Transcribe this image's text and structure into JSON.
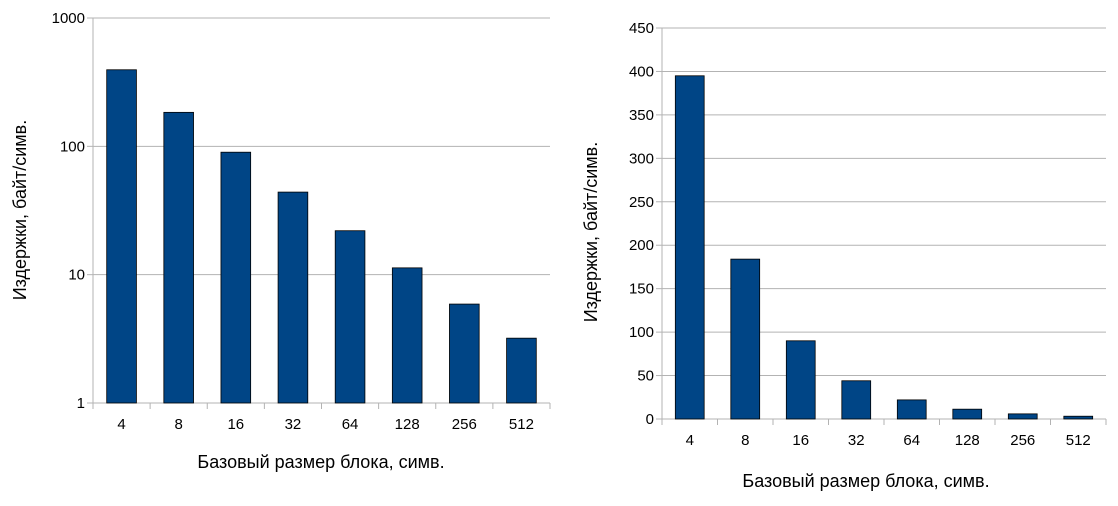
{
  "charts": {
    "left": {
      "xlabel": "Базовый размер блока, симв.",
      "ylabel": "Издержки, байт/симв.",
      "yticks": [
        "1",
        "10",
        "100",
        "1000"
      ]
    },
    "right": {
      "xlabel": "Базовый размер блока, симв.",
      "ylabel": "Издержки, байт/симв.",
      "yticks": [
        "0",
        "50",
        "100",
        "150",
        "200",
        "250",
        "300",
        "350",
        "400",
        "450"
      ]
    }
  },
  "chart_data": [
    {
      "type": "bar",
      "title": "",
      "xlabel": "Базовый размер блока, симв.",
      "ylabel": "Издержки, байт/симв.",
      "categories": [
        "4",
        "8",
        "16",
        "32",
        "64",
        "128",
        "256",
        "512"
      ],
      "values": [
        395,
        184,
        90,
        44,
        22,
        11.3,
        5.9,
        3.2
      ],
      "yscale": "log",
      "ylim": [
        1,
        1000
      ],
      "grid": true,
      "bar_color": "#004586"
    },
    {
      "type": "bar",
      "title": "",
      "xlabel": "Базовый размер блока, симв.",
      "ylabel": "Издержки, байт/симв.",
      "categories": [
        "4",
        "8",
        "16",
        "32",
        "64",
        "128",
        "256",
        "512"
      ],
      "values": [
        395,
        184,
        90,
        44,
        22,
        11.3,
        5.9,
        3.2
      ],
      "yscale": "linear",
      "ylim": [
        0,
        450
      ],
      "grid": true,
      "bar_color": "#004586"
    }
  ]
}
